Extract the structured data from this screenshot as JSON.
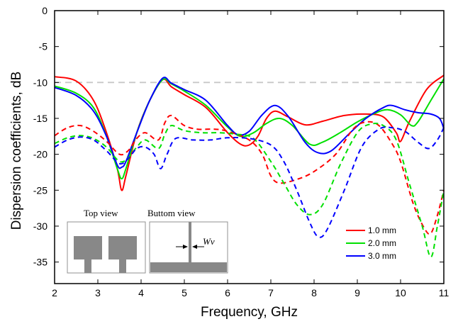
{
  "chart_data": {
    "type": "line",
    "xlabel": "Frequency, GHz",
    "ylabel": "Dispersion coefficients, dB",
    "xlim": [
      2,
      11
    ],
    "ylim": [
      -38,
      0
    ],
    "xticks": [
      2,
      3,
      4,
      5,
      6,
      7,
      8,
      9,
      10,
      11
    ],
    "yticks": [
      0,
      -5,
      -10,
      -15,
      -20,
      -25,
      -30,
      -35
    ],
    "reference_line": {
      "y": -10,
      "color": "#c8c8c8",
      "style": "dashed"
    },
    "legend": {
      "position": "bottom-right",
      "entries": [
        {
          "label": "1.0 mm",
          "color": "#ff0000"
        },
        {
          "label": "2.0 mm",
          "color": "#00e000"
        },
        {
          "label": "3.0 mm",
          "color": "#0000ff"
        }
      ]
    },
    "series": [
      {
        "group": "1.0 mm",
        "style": "solid",
        "color": "#ff0000",
        "points": [
          [
            2,
            -9.2
          ],
          [
            2.5,
            -9.8
          ],
          [
            2.9,
            -12.5
          ],
          [
            3.2,
            -17
          ],
          [
            3.45,
            -22
          ],
          [
            3.55,
            -25
          ],
          [
            3.65,
            -23
          ],
          [
            3.9,
            -17
          ],
          [
            4.2,
            -12.5
          ],
          [
            4.5,
            -9.6
          ],
          [
            4.7,
            -10.6
          ],
          [
            5.0,
            -11.7
          ],
          [
            5.5,
            -13.5
          ],
          [
            6.0,
            -17
          ],
          [
            6.3,
            -18.6
          ],
          [
            6.5,
            -18.7
          ],
          [
            6.7,
            -17.5
          ],
          [
            6.9,
            -15
          ],
          [
            7.1,
            -14
          ],
          [
            7.4,
            -14.8
          ],
          [
            7.8,
            -15.9
          ],
          [
            8.2,
            -15.4
          ],
          [
            8.7,
            -14.6
          ],
          [
            9.2,
            -14.4
          ],
          [
            9.6,
            -14.8
          ],
          [
            9.9,
            -17
          ],
          [
            10.0,
            -18.2
          ],
          [
            10.2,
            -15.5
          ],
          [
            10.6,
            -11
          ],
          [
            11,
            -9
          ]
        ]
      },
      {
        "group": "2.0 mm",
        "style": "solid",
        "color": "#00e000",
        "points": [
          [
            2,
            -10.5
          ],
          [
            2.5,
            -11.5
          ],
          [
            2.9,
            -13.5
          ],
          [
            3.2,
            -17.5
          ],
          [
            3.45,
            -22
          ],
          [
            3.55,
            -23.4
          ],
          [
            3.65,
            -22
          ],
          [
            3.9,
            -17
          ],
          [
            4.2,
            -12.5
          ],
          [
            4.5,
            -9.6
          ],
          [
            4.7,
            -10.2
          ],
          [
            5.0,
            -11.2
          ],
          [
            5.5,
            -13.2
          ],
          [
            6.0,
            -16.2
          ],
          [
            6.3,
            -17.5
          ],
          [
            6.6,
            -17
          ],
          [
            6.9,
            -15.7
          ],
          [
            7.2,
            -15
          ],
          [
            7.5,
            -16
          ],
          [
            7.9,
            -18.6
          ],
          [
            8.2,
            -18.3
          ],
          [
            8.6,
            -17
          ],
          [
            9.0,
            -15.5
          ],
          [
            9.4,
            -14.3
          ],
          [
            9.7,
            -13.8
          ],
          [
            10.0,
            -14.5
          ],
          [
            10.25,
            -16
          ],
          [
            10.4,
            -15.5
          ],
          [
            10.7,
            -12.5
          ],
          [
            11,
            -9.5
          ]
        ]
      },
      {
        "group": "3.0 mm",
        "style": "solid",
        "color": "#0000ff",
        "points": [
          [
            2,
            -10.7
          ],
          [
            2.5,
            -11.8
          ],
          [
            2.9,
            -14
          ],
          [
            3.2,
            -17.5
          ],
          [
            3.45,
            -21.5
          ],
          [
            3.55,
            -21.8
          ],
          [
            3.65,
            -21
          ],
          [
            3.9,
            -17
          ],
          [
            4.2,
            -12.5
          ],
          [
            4.5,
            -9.4
          ],
          [
            4.7,
            -10.1
          ],
          [
            5.0,
            -11
          ],
          [
            5.5,
            -12.5
          ],
          [
            6.0,
            -16
          ],
          [
            6.25,
            -17.3
          ],
          [
            6.5,
            -16.8
          ],
          [
            6.8,
            -14.5
          ],
          [
            7.1,
            -13.2
          ],
          [
            7.4,
            -14.7
          ],
          [
            7.8,
            -18.4
          ],
          [
            8.1,
            -19.8
          ],
          [
            8.4,
            -19.5
          ],
          [
            8.8,
            -17.2
          ],
          [
            9.2,
            -15
          ],
          [
            9.6,
            -13.5
          ],
          [
            9.8,
            -13.2
          ],
          [
            10.1,
            -13.8
          ],
          [
            10.4,
            -14.2
          ],
          [
            10.7,
            -14.4
          ],
          [
            10.9,
            -15
          ],
          [
            11,
            -16.4
          ]
        ]
      },
      {
        "group": "1.0 mm",
        "style": "dashed",
        "color": "#ff0000",
        "points": [
          [
            2,
            -17.4
          ],
          [
            2.3,
            -16.3
          ],
          [
            2.6,
            -16
          ],
          [
            2.9,
            -16.8
          ],
          [
            3.2,
            -18.2
          ],
          [
            3.5,
            -20
          ],
          [
            3.7,
            -19.5
          ],
          [
            3.9,
            -17.8
          ],
          [
            4.1,
            -17
          ],
          [
            4.4,
            -18
          ],
          [
            4.55,
            -15.6
          ],
          [
            4.7,
            -14.6
          ],
          [
            5.0,
            -16
          ],
          [
            5.3,
            -16.5
          ],
          [
            5.7,
            -16.5
          ],
          [
            6.0,
            -16.8
          ],
          [
            6.5,
            -18
          ],
          [
            6.8,
            -20
          ],
          [
            7.0,
            -23
          ],
          [
            7.2,
            -24
          ],
          [
            7.6,
            -23.5
          ],
          [
            8.0,
            -22.4
          ],
          [
            8.5,
            -20
          ],
          [
            8.9,
            -16.5
          ],
          [
            9.2,
            -15.5
          ],
          [
            9.5,
            -16
          ],
          [
            9.8,
            -18.5
          ],
          [
            10.0,
            -21
          ],
          [
            10.3,
            -27
          ],
          [
            10.55,
            -30.3
          ],
          [
            10.7,
            -31
          ],
          [
            10.85,
            -28.5
          ],
          [
            11,
            -25
          ]
        ]
      },
      {
        "group": "2.0 mm",
        "style": "dashed",
        "color": "#00e000",
        "points": [
          [
            2,
            -18.5
          ],
          [
            2.3,
            -17.7
          ],
          [
            2.6,
            -17.4
          ],
          [
            2.9,
            -17.8
          ],
          [
            3.2,
            -19
          ],
          [
            3.5,
            -21
          ],
          [
            3.7,
            -20.5
          ],
          [
            3.9,
            -19
          ],
          [
            4.1,
            -18
          ],
          [
            4.4,
            -19.2
          ],
          [
            4.55,
            -17.2
          ],
          [
            4.7,
            -16
          ],
          [
            5.0,
            -16.7
          ],
          [
            5.4,
            -17
          ],
          [
            5.8,
            -17
          ],
          [
            6.2,
            -17.2
          ],
          [
            6.6,
            -17.8
          ],
          [
            7.0,
            -21
          ],
          [
            7.3,
            -24
          ],
          [
            7.6,
            -27
          ],
          [
            7.9,
            -28.4
          ],
          [
            8.2,
            -27
          ],
          [
            8.6,
            -21.5
          ],
          [
            9.0,
            -17
          ],
          [
            9.3,
            -15.8
          ],
          [
            9.6,
            -16
          ],
          [
            9.9,
            -18
          ],
          [
            10.2,
            -24
          ],
          [
            10.5,
            -30
          ],
          [
            10.7,
            -34.3
          ],
          [
            10.85,
            -30
          ],
          [
            11,
            -25
          ]
        ]
      },
      {
        "group": "3.0 mm",
        "style": "dashed",
        "color": "#0000ff",
        "points": [
          [
            2,
            -19
          ],
          [
            2.3,
            -18
          ],
          [
            2.6,
            -17.6
          ],
          [
            2.9,
            -18
          ],
          [
            3.2,
            -19.5
          ],
          [
            3.5,
            -21.3
          ],
          [
            3.7,
            -20.6
          ],
          [
            3.9,
            -19.2
          ],
          [
            4.1,
            -19
          ],
          [
            4.3,
            -20
          ],
          [
            4.45,
            -22
          ],
          [
            4.6,
            -20
          ],
          [
            4.8,
            -17.8
          ],
          [
            5.2,
            -18
          ],
          [
            5.6,
            -18
          ],
          [
            6.0,
            -17.7
          ],
          [
            6.5,
            -17.8
          ],
          [
            7.0,
            -18.7
          ],
          [
            7.3,
            -21
          ],
          [
            7.6,
            -25
          ],
          [
            7.9,
            -29.5
          ],
          [
            8.1,
            -31.5
          ],
          [
            8.3,
            -30.5
          ],
          [
            8.7,
            -25
          ],
          [
            9.1,
            -19
          ],
          [
            9.5,
            -16.5
          ],
          [
            9.8,
            -16.3
          ],
          [
            10.1,
            -16.8
          ],
          [
            10.4,
            -18.3
          ],
          [
            10.65,
            -19.2
          ],
          [
            10.85,
            -18
          ],
          [
            11,
            -16.3
          ]
        ]
      }
    ]
  },
  "inset": {
    "top_view_label": "Top view",
    "bottom_view_label": "Buttom view",
    "dimension_label": "Wv"
  }
}
